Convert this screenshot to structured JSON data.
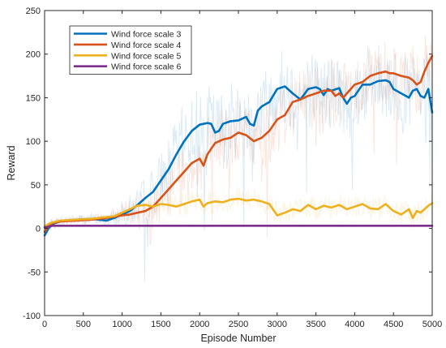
{
  "chart_data": {
    "type": "line",
    "title": "",
    "xlabel": "Episode Number",
    "ylabel": "Reward",
    "xlim": [
      0,
      5000
    ],
    "ylim": [
      -100,
      250
    ],
    "xticks": [
      0,
      500,
      1000,
      1500,
      2000,
      2500,
      3000,
      3500,
      4000,
      4500,
      5000
    ],
    "yticks": [
      -100,
      -50,
      0,
      50,
      100,
      150,
      200,
      250
    ],
    "grid": false,
    "legend_position": "top-left",
    "series": [
      {
        "name": "Wind force scale 3",
        "color": "#0072BD",
        "x": [
          0,
          50,
          100,
          200,
          400,
          600,
          800,
          900,
          1000,
          1100,
          1200,
          1300,
          1400,
          1500,
          1600,
          1700,
          1800,
          1900,
          2000,
          2100,
          2150,
          2200,
          2250,
          2300,
          2400,
          2500,
          2600,
          2650,
          2700,
          2750,
          2800,
          2900,
          3000,
          3100,
          3200,
          3300,
          3400,
          3500,
          3550,
          3600,
          3650,
          3700,
          3800,
          3850,
          3900,
          3950,
          4000,
          4100,
          4200,
          4300,
          4400,
          4450,
          4500,
          4600,
          4700,
          4750,
          4800,
          4850,
          4900,
          4950,
          5000
        ],
        "y": [
          -8,
          0,
          5,
          8,
          10,
          11,
          9,
          12,
          16,
          20,
          27,
          35,
          42,
          55,
          68,
          85,
          100,
          112,
          119,
          121,
          120,
          110,
          112,
          120,
          123,
          124,
          128,
          120,
          118,
          135,
          140,
          145,
          160,
          163,
          155,
          148,
          160,
          162,
          160,
          153,
          160,
          158,
          161,
          150,
          143,
          150,
          152,
          165,
          165,
          169,
          170,
          168,
          160,
          155,
          150,
          158,
          160,
          152,
          150,
          160,
          133
        ]
      },
      {
        "name": "Wind force scale 4",
        "color": "#D95319",
        "x": [
          0,
          50,
          100,
          200,
          400,
          600,
          800,
          1000,
          1100,
          1200,
          1300,
          1400,
          1500,
          1600,
          1700,
          1800,
          1900,
          2000,
          2050,
          2100,
          2200,
          2300,
          2400,
          2500,
          2600,
          2700,
          2800,
          2900,
          3000,
          3100,
          3200,
          3300,
          3400,
          3500,
          3600,
          3650,
          3700,
          3750,
          3800,
          3850,
          3900,
          4000,
          4100,
          4200,
          4300,
          4400,
          4450,
          4500,
          4600,
          4700,
          4750,
          4800,
          4850,
          4900,
          4950,
          5000
        ],
        "y": [
          -4,
          2,
          6,
          8,
          9,
          10,
          12,
          15,
          16,
          18,
          20,
          25,
          35,
          45,
          55,
          65,
          75,
          80,
          72,
          85,
          98,
          102,
          104,
          110,
          107,
          100,
          104,
          112,
          125,
          130,
          145,
          148,
          152,
          155,
          158,
          158,
          158,
          152,
          155,
          150,
          155,
          165,
          168,
          175,
          178,
          180,
          178,
          178,
          175,
          173,
          170,
          165,
          168,
          180,
          190,
          198
        ]
      },
      {
        "name": "Wind force scale 5",
        "color": "#EDB120",
        "x": [
          0,
          50,
          100,
          200,
          400,
          600,
          800,
          900,
          1000,
          1100,
          1200,
          1300,
          1400,
          1500,
          1600,
          1700,
          1800,
          1900,
          2000,
          2050,
          2100,
          2200,
          2300,
          2400,
          2500,
          2600,
          2700,
          2800,
          2900,
          3000,
          3100,
          3200,
          3300,
          3400,
          3500,
          3600,
          3700,
          3800,
          3900,
          4000,
          4100,
          4200,
          4300,
          4400,
          4500,
          4600,
          4700,
          4750,
          4800,
          4850,
          4900,
          4950,
          5000
        ],
        "y": [
          2,
          5,
          7,
          9,
          10,
          11,
          13,
          14,
          18,
          22,
          26,
          27,
          25,
          28,
          27,
          25,
          28,
          31,
          33,
          25,
          29,
          31,
          30,
          33,
          34,
          32,
          33,
          31,
          28,
          15,
          18,
          22,
          20,
          27,
          22,
          26,
          24,
          27,
          22,
          25,
          28,
          23,
          22,
          28,
          20,
          16,
          22,
          12,
          20,
          18,
          22,
          26,
          29
        ]
      },
      {
        "name": "Wind force scale 6",
        "color": "#7E2F8E",
        "x": [
          0,
          100,
          500,
          1000,
          2000,
          3000,
          4000,
          5000
        ],
        "y": [
          1,
          3,
          3,
          3,
          3,
          3,
          3,
          3
        ]
      }
    ]
  }
}
